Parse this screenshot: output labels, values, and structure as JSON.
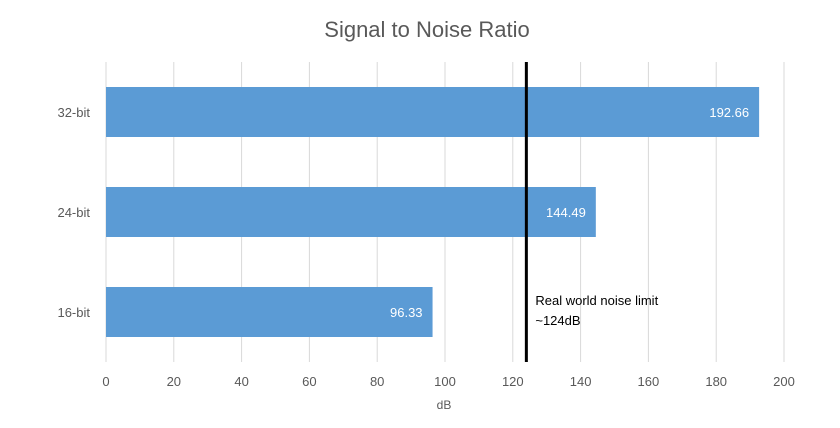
{
  "chart_data": {
    "type": "bar",
    "orientation": "horizontal",
    "title": "Signal to Noise Ratio",
    "xlabel": "dB",
    "ylabel": "",
    "categories": [
      "32-bit",
      "24-bit",
      "16-bit"
    ],
    "values": [
      192.66,
      144.49,
      96.33
    ],
    "data_labels": [
      "192.66",
      "144.49",
      "96.33"
    ],
    "xlim": [
      0,
      200
    ],
    "xticks": [
      0,
      20,
      40,
      60,
      80,
      100,
      120,
      140,
      160,
      180,
      200
    ],
    "grid": "vertical",
    "legend": "none",
    "bar_color": "#5b9bd5",
    "reference_line": {
      "value": 124,
      "color": "#000000",
      "label_lines": [
        "Real world noise limit",
        "~124dB"
      ]
    }
  }
}
